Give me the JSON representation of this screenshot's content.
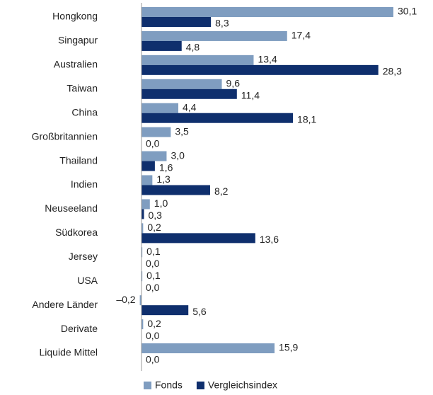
{
  "chart_data": {
    "type": "bar",
    "orientation": "horizontal",
    "legend": "bottom",
    "categories": [
      "Hongkong",
      "Singapur",
      "Australien",
      "Taiwan",
      "China",
      "Großbritannien",
      "Thailand",
      "Indien",
      "Neuseeland",
      "Südkorea",
      "Jersey",
      "USA",
      "Andere Länder",
      "Derivate",
      "Liquide Mittel"
    ],
    "series": [
      {
        "name": "Fonds",
        "color": "#7f9dc0",
        "values": [
          30.1,
          17.4,
          13.4,
          9.6,
          4.4,
          3.5,
          3.0,
          1.3,
          1.0,
          0.2,
          0.1,
          0.1,
          -0.2,
          0.2,
          15.9
        ],
        "value_labels": [
          "30,1",
          "17,4",
          "13,4",
          "9,6",
          "4,4",
          "3,5",
          "3,0",
          "1,3",
          "1,0",
          "0,2",
          "0,1",
          "0,1",
          "–0,2",
          "0,2",
          "15,9"
        ]
      },
      {
        "name": "Vergleichsindex",
        "color": "#0f2f6d",
        "values": [
          8.3,
          4.8,
          28.3,
          11.4,
          18.1,
          0.0,
          1.6,
          8.2,
          0.3,
          13.6,
          0.0,
          0.0,
          5.6,
          0.0,
          0.0
        ],
        "value_labels": [
          "8,3",
          "4,8",
          "28,3",
          "11,4",
          "18,1",
          "0,0",
          "1,6",
          "8,2",
          "0,3",
          "13,6",
          "0,0",
          "0,0",
          "5,6",
          "0,0",
          "0,0"
        ]
      }
    ]
  }
}
